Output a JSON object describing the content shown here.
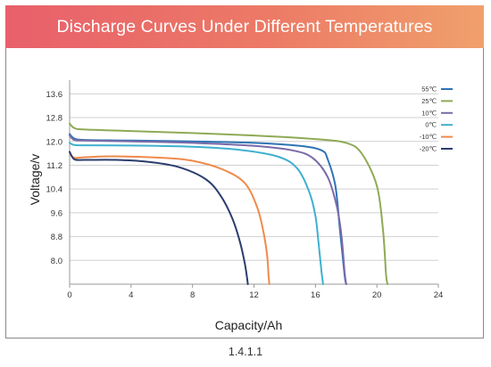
{
  "header": {
    "title": "Discharge Curves Under Different Temperatures"
  },
  "footer": {
    "caption": "1.4.1.1"
  },
  "chart_data": {
    "type": "line",
    "title": "Discharge Curves Under Different Temperatures",
    "xlabel": "Capacity/Ah",
    "ylabel": "Voltage/v",
    "xlim": [
      0,
      24
    ],
    "ylim": [
      7.2,
      14.0
    ],
    "xticks": [
      "0",
      "4",
      "8",
      "12",
      "16",
      "20",
      "24"
    ],
    "yticks": [
      "8.0",
      "8.8",
      "9.6",
      "10.4",
      "11.2",
      "12.0",
      "12.8",
      "13.6"
    ],
    "grid": true,
    "legend_position": "top-right",
    "series": [
      {
        "name": "55℃",
        "color": "#2e74b5",
        "x": [
          0,
          0.3,
          1,
          4,
          8,
          12,
          15,
          16.4,
          16.8,
          17.3,
          17.6,
          17.9,
          18.0
        ],
        "y": [
          12.25,
          12.1,
          12.05,
          12.03,
          12.0,
          11.95,
          11.85,
          11.7,
          11.4,
          10.5,
          9.0,
          7.5,
          7.2
        ]
      },
      {
        "name": "25℃",
        "color": "#8faa55",
        "x": [
          0,
          0.3,
          1,
          4,
          8,
          12,
          16,
          18,
          19,
          20,
          20.4,
          20.6,
          20.7
        ],
        "y": [
          12.6,
          12.45,
          12.4,
          12.35,
          12.28,
          12.2,
          12.08,
          11.95,
          11.6,
          10.5,
          9.0,
          7.5,
          7.2
        ]
      },
      {
        "name": "10℃",
        "color": "#7a6aa8",
        "x": [
          0,
          0.3,
          1,
          4,
          8,
          12,
          14.5,
          15.8,
          16.8,
          17.4,
          17.7,
          17.9,
          18.0
        ],
        "y": [
          12.2,
          12.05,
          12.03,
          12.0,
          11.95,
          11.85,
          11.7,
          11.45,
          10.8,
          9.8,
          8.8,
          7.6,
          7.2
        ]
      },
      {
        "name": "0℃",
        "color": "#3fb0cf",
        "x": [
          0,
          0.3,
          1,
          4,
          8,
          11,
          13.5,
          14.8,
          15.6,
          16.0,
          16.2,
          16.4,
          16.5
        ],
        "y": [
          11.95,
          11.88,
          11.87,
          11.86,
          11.82,
          11.72,
          11.5,
          11.1,
          10.3,
          9.5,
          8.6,
          7.6,
          7.2
        ]
      },
      {
        "name": "-10℃",
        "color": "#f08a4b",
        "x": [
          0,
          0.3,
          1,
          3,
          6,
          8,
          10,
          11.4,
          12.2,
          12.6,
          12.85,
          12.95,
          13.0
        ],
        "y": [
          11.6,
          11.45,
          11.47,
          11.5,
          11.45,
          11.35,
          11.05,
          10.6,
          9.8,
          9.0,
          8.2,
          7.5,
          7.2
        ]
      },
      {
        "name": "-20℃",
        "color": "#2b3d6e",
        "x": [
          0,
          0.3,
          1,
          3,
          5,
          7,
          8.8,
          9.8,
          10.6,
          11.1,
          11.4,
          11.55,
          11.6
        ],
        "y": [
          11.65,
          11.4,
          11.38,
          11.38,
          11.32,
          11.15,
          10.75,
          10.2,
          9.4,
          8.6,
          7.9,
          7.4,
          7.2
        ]
      }
    ]
  }
}
